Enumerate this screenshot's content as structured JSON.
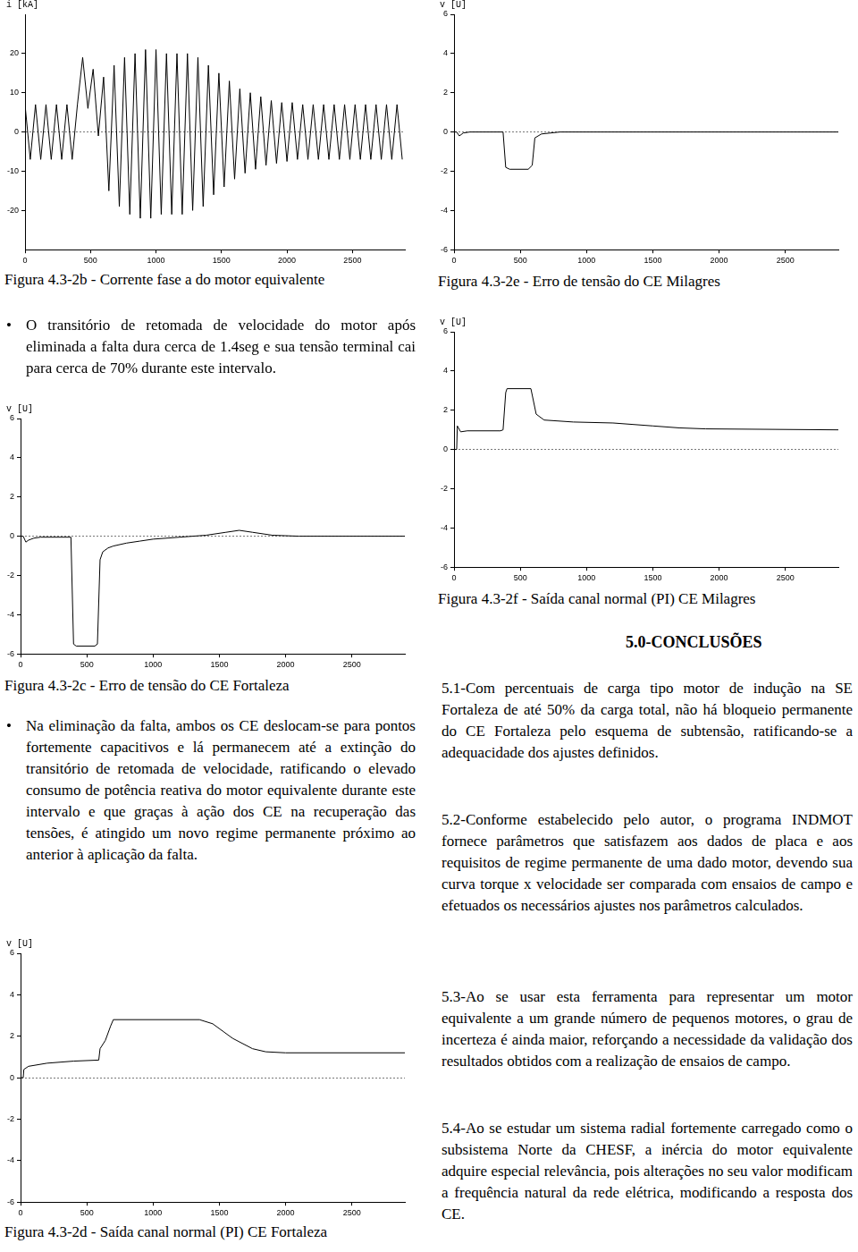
{
  "chart_data": [
    {
      "type": "line",
      "title": "Figura 4.3-2b - Corrente fase a do motor equivalente",
      "y_label": "i [kA]",
      "color": "#000000",
      "x": [
        0,
        40,
        80,
        120,
        160,
        200,
        240,
        280,
        320,
        360,
        400,
        440,
        480,
        520,
        560,
        600,
        640,
        680,
        720,
        760,
        800,
        840,
        880,
        920,
        960,
        1000,
        1040,
        1080,
        1120,
        1160,
        1200,
        1240,
        1280,
        1320,
        1360,
        1400,
        1440,
        1480,
        1520,
        1560,
        1600,
        1640,
        1680,
        1720,
        1760,
        1800,
        1840,
        1880,
        1920,
        1960,
        2000,
        2040,
        2080,
        2120,
        2160,
        2200,
        2240,
        2280,
        2320,
        2360,
        2400,
        2440,
        2480,
        2520,
        2560,
        2600,
        2640,
        2680,
        2720,
        2760,
        2800,
        2840,
        2880
      ],
      "values": [
        7,
        -7,
        7,
        -7,
        7,
        -7,
        7,
        -7,
        7,
        -7,
        7,
        19,
        6,
        16,
        -1,
        14,
        -15,
        17,
        -19,
        19,
        -21,
        20,
        -22,
        21,
        -22,
        21,
        -21,
        20,
        -21,
        20,
        -21,
        20,
        -20,
        19,
        -19,
        17,
        -16,
        15,
        -14,
        13,
        -12,
        11,
        -10.5,
        10,
        -9.5,
        9,
        -8.5,
        8,
        -8,
        7.5,
        -7.5,
        7.5,
        -7,
        7,
        -7,
        7,
        -7,
        7,
        -7,
        7,
        -7,
        7,
        -7,
        7,
        -7,
        7,
        -7,
        7,
        -7,
        7,
        -7,
        7,
        -7
      ],
      "xlim": [
        0,
        2900
      ],
      "xticks": [
        0,
        500,
        1000,
        1500,
        2000,
        2500
      ],
      "ylim": [
        -30,
        30
      ],
      "yticks": [
        -20,
        -10,
        0,
        10,
        20
      ]
    },
    {
      "type": "line",
      "title": "Figura 4.3-2c - Erro de tensão do CE Fortaleza",
      "y_label": "v [U]",
      "color": "#000000",
      "x": [
        0,
        20,
        40,
        60,
        80,
        100,
        150,
        380,
        400,
        420,
        560,
        580,
        600,
        620,
        660,
        700,
        800,
        900,
        1000,
        1200,
        1400,
        1550,
        1650,
        1750,
        1900,
        2100,
        2900
      ],
      "values": [
        0,
        0,
        -0.3,
        -0.2,
        -0.15,
        -0.1,
        -0.05,
        -0.05,
        -5.5,
        -5.6,
        -5.6,
        -5.5,
        -1.2,
        -0.8,
        -0.6,
        -0.5,
        -0.35,
        -0.25,
        -0.15,
        -0.05,
        0.05,
        0.2,
        0.3,
        0.2,
        0.05,
        0,
        0
      ],
      "xlim": [
        0,
        2900
      ],
      "xticks": [
        0,
        500,
        1000,
        1500,
        2000,
        2500
      ],
      "ylim": [
        -6,
        6
      ],
      "yticks": [
        -6,
        -4,
        -2,
        0,
        2,
        4,
        6
      ]
    },
    {
      "type": "line",
      "title": "Figura 4.3-2d - Saída canal normal (PI) CE Fortaleza",
      "y_label": "v [U]",
      "color": "#000000",
      "x": [
        0,
        20,
        25,
        60,
        200,
        400,
        590,
        600,
        640,
        680,
        700,
        1350,
        1450,
        1600,
        1750,
        1850,
        2000,
        2900
      ],
      "values": [
        0,
        0,
        0.4,
        0.55,
        0.7,
        0.8,
        0.85,
        1.4,
        1.8,
        2.5,
        2.8,
        2.8,
        2.6,
        1.9,
        1.4,
        1.25,
        1.2,
        1.2
      ],
      "xlim": [
        0,
        2900
      ],
      "xticks": [
        0,
        500,
        1000,
        1500,
        2000,
        2500
      ],
      "ylim": [
        -6,
        6
      ],
      "yticks": [
        -6,
        -4,
        -2,
        0,
        2,
        4,
        6
      ]
    },
    {
      "type": "line",
      "title": "Figura 4.3-2e - Erro de tensão do CE Milagres",
      "y_label": "v [U]",
      "color": "#000000",
      "x": [
        0,
        20,
        40,
        70,
        120,
        370,
        390,
        420,
        560,
        590,
        610,
        660,
        800,
        2900
      ],
      "values": [
        0,
        0,
        -0.2,
        -0.05,
        0,
        0,
        -1.8,
        -1.9,
        -1.9,
        -1.7,
        -0.3,
        -0.1,
        0,
        0
      ],
      "xlim": [
        0,
        2900
      ],
      "xticks": [
        0,
        500,
        1000,
        1500,
        2000,
        2500
      ],
      "ylim": [
        -6,
        6
      ],
      "yticks": [
        -6,
        -4,
        -2,
        0,
        2,
        4,
        6
      ]
    },
    {
      "type": "line",
      "title": "Figura 4.3-2f - Saída canal normal (PI) CE Milagres",
      "y_label": "v [U]",
      "color": "#000000",
      "x": [
        0,
        20,
        25,
        50,
        100,
        350,
        370,
        390,
        400,
        580,
        620,
        680,
        900,
        1200,
        1500,
        1700,
        1900,
        2900
      ],
      "values": [
        0,
        0,
        1.2,
        0.9,
        0.95,
        0.95,
        1.0,
        2.9,
        3.1,
        3.1,
        1.8,
        1.5,
        1.4,
        1.35,
        1.2,
        1.1,
        1.05,
        1.0
      ],
      "xlim": [
        0,
        2900
      ],
      "xticks": [
        0,
        500,
        1000,
        1500,
        2000,
        2500
      ],
      "ylim": [
        -6,
        6
      ],
      "yticks": [
        -6,
        -4,
        -2,
        0,
        2,
        4,
        6
      ]
    }
  ],
  "document": {
    "bullets": [
      "O transitório de retomada de velocidade do motor após eliminada a falta dura cerca de 1.4seg e sua tensão terminal cai para cerca de 70% durante este intervalo.",
      "Na eliminação da falta, ambos os CE deslocam-se para pontos fortemente capacitivos e lá permanecem até a extinção do transitório de retomada de velocidade, ratificando o elevado consumo de potência reativa do motor equivalente durante este intervalo e que graças à ação dos CE na recuperação das tensões, é atingido um novo regime permanente próximo ao anterior à aplicação da falta."
    ],
    "heading": "5.0-CONCLUSÕES",
    "conclusions": [
      "5.1-Com percentuais de carga tipo motor de indução na SE Fortaleza de até 50% da carga total, não há bloqueio permanente do CE Fortaleza pelo esquema de subtensão, ratificando-se a adequacidade dos ajustes definidos.",
      "5.2-Conforme estabelecido pelo autor, o programa INDMOT fornece parâmetros que satisfazem aos dados de placa e aos requisitos de regime permanente de uma dado motor, devendo sua curva torque x velocidade ser comparada com ensaios de campo e efetuados os necessários ajustes nos parâmetros calculados.",
      "5.3-Ao se usar esta ferramenta para representar um motor equivalente a um grande número de pequenos motores, o grau de incerteza é ainda maior, reforçando a necessidade da validação dos resultados obtidos com a realização de ensaios de campo.",
      "5.4-Ao se estudar um sistema radial fortemente carregado como o subsistema Norte da CHESF, a inércia do motor equivalente adquire especial relevância, pois alterações no seu valor modificam a frequência natural da rede elétrica, modificando a resposta dos CE."
    ]
  }
}
